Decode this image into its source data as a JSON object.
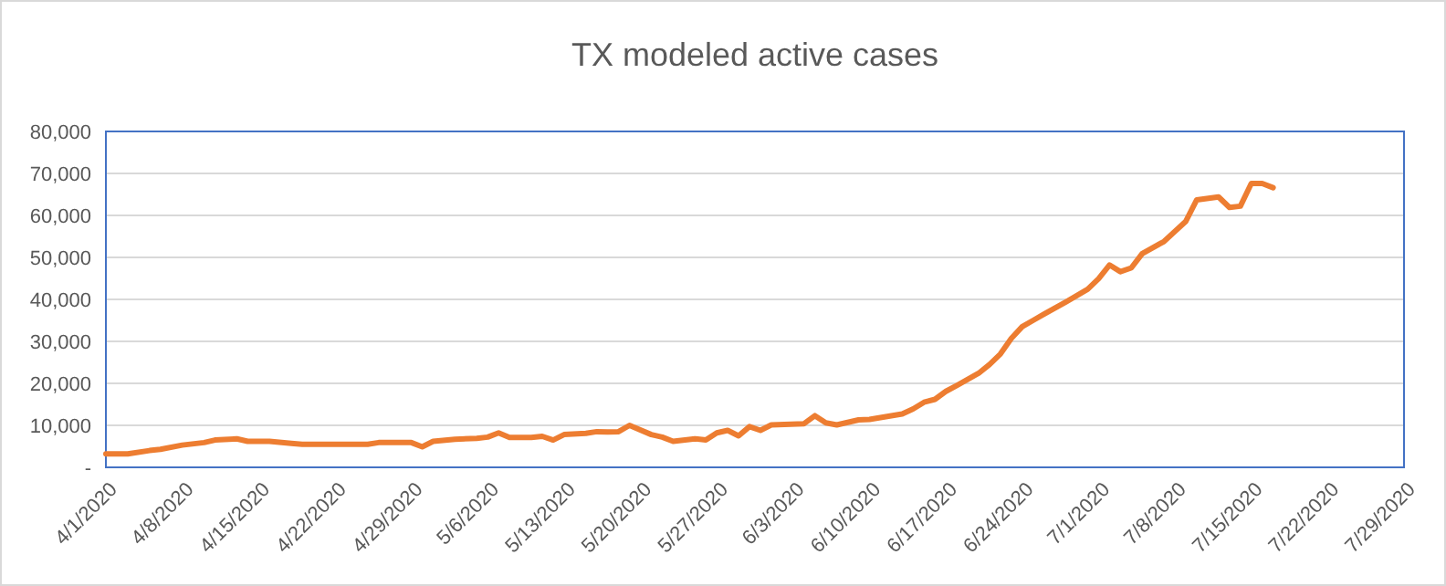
{
  "chart_data": {
    "type": "line",
    "title": "TX modeled active cases",
    "x": [
      "2020-04-01",
      "2020-04-03",
      "2020-04-05",
      "2020-04-06",
      "2020-04-08",
      "2020-04-10",
      "2020-04-11",
      "2020-04-13",
      "2020-04-14",
      "2020-04-16",
      "2020-04-18",
      "2020-04-19",
      "2020-04-22",
      "2020-04-25",
      "2020-04-26",
      "2020-04-29",
      "2020-04-30",
      "2020-05-01",
      "2020-05-03",
      "2020-05-05",
      "2020-05-06",
      "2020-05-07",
      "2020-05-08",
      "2020-05-10",
      "2020-05-11",
      "2020-05-12",
      "2020-05-13",
      "2020-05-15",
      "2020-05-16",
      "2020-05-17",
      "2020-05-18",
      "2020-05-19",
      "2020-05-21",
      "2020-05-22",
      "2020-05-23",
      "2020-05-25",
      "2020-05-26",
      "2020-05-27",
      "2020-05-28",
      "2020-05-29",
      "2020-05-30",
      "2020-05-31",
      "2020-06-01",
      "2020-06-04",
      "2020-06-05",
      "2020-06-06",
      "2020-06-07",
      "2020-06-09",
      "2020-06-10",
      "2020-06-13",
      "2020-06-14",
      "2020-06-15",
      "2020-06-16",
      "2020-06-17",
      "2020-06-18",
      "2020-06-20",
      "2020-06-21",
      "2020-06-22",
      "2020-06-23",
      "2020-06-24",
      "2020-06-25",
      "2020-06-26",
      "2020-06-28",
      "2020-06-30",
      "2020-07-01",
      "2020-07-02",
      "2020-07-03",
      "2020-07-04",
      "2020-07-05",
      "2020-07-07",
      "2020-07-09",
      "2020-07-10",
      "2020-07-12",
      "2020-07-13",
      "2020-07-14",
      "2020-07-15",
      "2020-07-16",
      "2020-07-17"
    ],
    "series": [
      {
        "color": "#ed7d31",
        "values": [
          3200,
          3200,
          4000,
          4300,
          5300,
          5900,
          6500,
          6800,
          6200,
          6200,
          5700,
          5500,
          5500,
          5500,
          5900,
          5900,
          4900,
          6200,
          6700,
          6900,
          7200,
          8200,
          7100,
          7100,
          7400,
          6500,
          7800,
          8100,
          8500,
          8400,
          8500,
          10000,
          7800,
          7200,
          6200,
          6800,
          6500,
          8200,
          8800,
          7500,
          9700,
          8800,
          10100,
          10400,
          12300,
          10600,
          10100,
          11300,
          11400,
          12700,
          13900,
          15500,
          16200,
          18100,
          19500,
          22400,
          24500,
          27000,
          30700,
          33500,
          35000,
          36500,
          39400,
          42400,
          44900,
          48200,
          46600,
          47500,
          50900,
          53800,
          58600,
          63700,
          64400,
          61900,
          62200,
          67600,
          67600,
          66600
        ]
      }
    ],
    "xlim": [
      "2020-04-01",
      "2020-07-29"
    ],
    "xticks": [
      {
        "value": "2020-04-01",
        "label": "4/1/2020"
      },
      {
        "value": "2020-04-08",
        "label": "4/8/2020"
      },
      {
        "value": "2020-04-15",
        "label": "4/15/2020"
      },
      {
        "value": "2020-04-22",
        "label": "4/22/2020"
      },
      {
        "value": "2020-04-29",
        "label": "4/29/2020"
      },
      {
        "value": "2020-05-06",
        "label": "5/6/2020"
      },
      {
        "value": "2020-05-13",
        "label": "5/13/2020"
      },
      {
        "value": "2020-05-20",
        "label": "5/20/2020"
      },
      {
        "value": "2020-05-27",
        "label": "5/27/2020"
      },
      {
        "value": "2020-06-03",
        "label": "6/3/2020"
      },
      {
        "value": "2020-06-10",
        "label": "6/10/2020"
      },
      {
        "value": "2020-06-17",
        "label": "6/17/2020"
      },
      {
        "value": "2020-06-24",
        "label": "6/24/2020"
      },
      {
        "value": "2020-07-01",
        "label": "7/1/2020"
      },
      {
        "value": "2020-07-08",
        "label": "7/8/2020"
      },
      {
        "value": "2020-07-15",
        "label": "7/15/2020"
      },
      {
        "value": "2020-07-22",
        "label": "7/22/2020"
      },
      {
        "value": "2020-07-29",
        "label": "7/29/2020"
      }
    ],
    "ylim": [
      0,
      80000
    ],
    "yticks": [
      {
        "value": 0,
        "label": "-"
      },
      {
        "value": 10000,
        "label": "10,000"
      },
      {
        "value": 20000,
        "label": "20,000"
      },
      {
        "value": 30000,
        "label": "30,000"
      },
      {
        "value": 40000,
        "label": "40,000"
      },
      {
        "value": 50000,
        "label": "50,000"
      },
      {
        "value": 60000,
        "label": "60,000"
      },
      {
        "value": 70000,
        "label": "70,000"
      },
      {
        "value": 80000,
        "label": "80,000"
      }
    ],
    "grid": "y",
    "marker": "none",
    "line_style": "solid"
  }
}
